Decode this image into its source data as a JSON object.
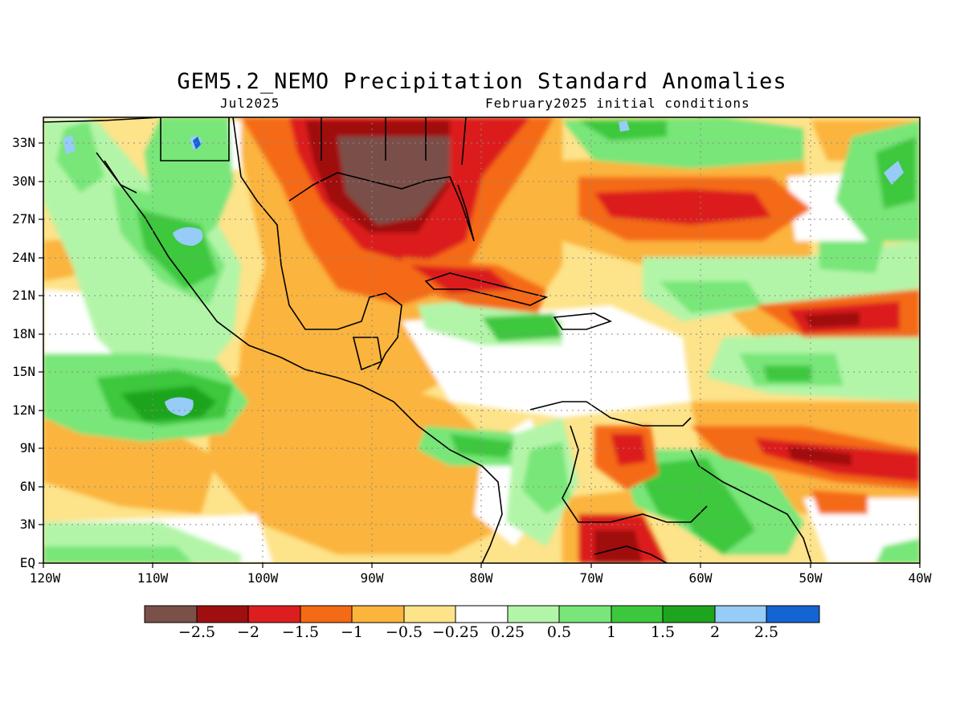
{
  "header": {
    "title": "GEM5.2_NEMO Precipitation Standard Anomalies",
    "valid_month": "Jul2025",
    "initial_conditions": "February2025 initial conditions"
  },
  "map": {
    "lat_labels": [
      "33N",
      "30N",
      "27N",
      "24N",
      "21N",
      "18N",
      "15N",
      "12N",
      "9N",
      "6N",
      "3N",
      "EQ"
    ],
    "lon_labels": [
      "120W",
      "110W",
      "100W",
      "90W",
      "80W",
      "70W",
      "60W",
      "50W",
      "40W"
    ],
    "grid": "dotted"
  },
  "colorbar": {
    "colors": [
      "#7a5048",
      "#a00f0f",
      "#dc1e1e",
      "#f56a14",
      "#fbb43c",
      "#fde38a",
      "#ffffff",
      "#b3f5a8",
      "#78e678",
      "#3cc83c",
      "#1ea51e",
      "#96ccf5",
      "#1464d2"
    ],
    "labels": [
      "-2.5",
      "-2",
      "-1.5",
      "-1",
      "-0.5",
      "-0.25",
      "0.25",
      "0.5",
      "1",
      "1.5",
      "2",
      "2.5"
    ]
  }
}
